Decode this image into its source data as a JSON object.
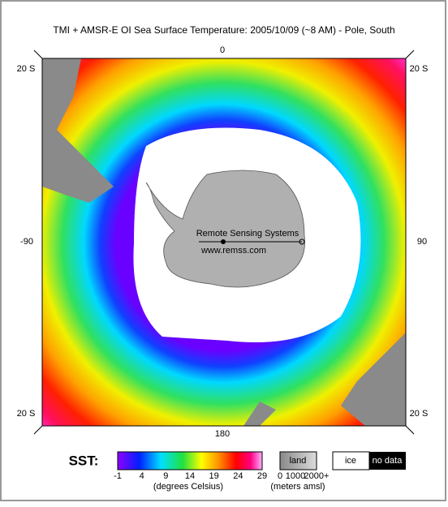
{
  "header": {
    "title": "TMI + AMSR-E OI Sea Surface Temperature: 2005/10/09 (~8 AM) - Pole, South"
  },
  "map": {
    "corner_labels": [
      "20 S",
      "20 S",
      "20 S",
      "20 S"
    ],
    "top_label": "0",
    "left_label": "-90",
    "right_label": "90",
    "bottom_label": "180",
    "credit": "Remote Sensing Systems",
    "url": "www.remss.com"
  },
  "legend": {
    "label": "SST:",
    "ticks": [
      "-1",
      "4",
      "9",
      "14",
      "19",
      "24",
      "29"
    ],
    "unit": "(degrees Celsius)",
    "land": "land",
    "land_ticks": [
      "0",
      "1000",
      "2000+"
    ],
    "land_unit": "(meters amsl)",
    "ice": "ice",
    "no_data": "no data"
  }
}
